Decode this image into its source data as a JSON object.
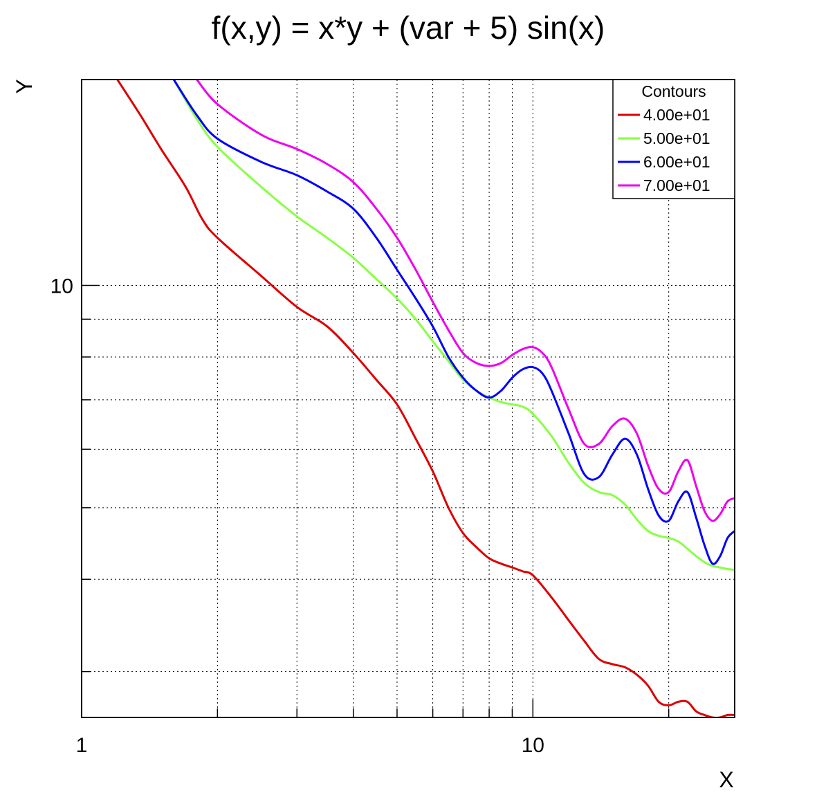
{
  "chart_data": {
    "type": "line",
    "title": "f(x,y) = x*y + (var + 5) sin(x)",
    "xlabel": "X",
    "ylabel": "Y",
    "xscale": "log",
    "yscale": "log",
    "xlim": [
      1,
      28
    ],
    "ylim": [
      2.6,
      19
    ],
    "x_tick_labels": [
      {
        "value": 1,
        "label": "1"
      },
      {
        "value": 10,
        "label": "10"
      }
    ],
    "y_tick_labels": [
      {
        "value": 10,
        "label": "10"
      }
    ],
    "grid": true,
    "legend": {
      "title": "Contours",
      "position": "top-right"
    },
    "series": [
      {
        "name": "4.00e+01",
        "color": "#dd0000",
        "points": [
          [
            1.2,
            19.0
          ],
          [
            1.35,
            17.0
          ],
          [
            1.5,
            15.3
          ],
          [
            1.7,
            13.6
          ],
          [
            1.85,
            12.3
          ],
          [
            2.0,
            11.6
          ],
          [
            2.5,
            10.3
          ],
          [
            3.0,
            9.35
          ],
          [
            3.5,
            8.8
          ],
          [
            4.0,
            8.1
          ],
          [
            4.5,
            7.45
          ],
          [
            5.0,
            6.9
          ],
          [
            5.5,
            6.2
          ],
          [
            6.0,
            5.6
          ],
          [
            6.5,
            5.0
          ],
          [
            7.0,
            4.62
          ],
          [
            7.5,
            4.42
          ],
          [
            8.0,
            4.27
          ],
          [
            8.5,
            4.2
          ],
          [
            9.0,
            4.15
          ],
          [
            9.5,
            4.1
          ],
          [
            10.0,
            4.05
          ],
          [
            11.0,
            3.78
          ],
          [
            12.0,
            3.52
          ],
          [
            13.0,
            3.3
          ],
          [
            14.0,
            3.12
          ],
          [
            15.0,
            3.07
          ],
          [
            16.0,
            3.04
          ],
          [
            17.0,
            2.97
          ],
          [
            18.0,
            2.87
          ],
          [
            19.0,
            2.73
          ],
          [
            20.0,
            2.7
          ],
          [
            21.0,
            2.73
          ],
          [
            22.0,
            2.73
          ],
          [
            23.0,
            2.65
          ],
          [
            24.0,
            2.62
          ],
          [
            25.0,
            2.6
          ],
          [
            26.0,
            2.6
          ],
          [
            27.0,
            2.62
          ],
          [
            28.0,
            2.62
          ]
        ]
      },
      {
        "name": "5.00e+01",
        "color": "#88ff44",
        "points": [
          [
            1.6,
            19.0
          ],
          [
            1.8,
            16.8
          ],
          [
            2.0,
            15.4
          ],
          [
            2.5,
            13.6
          ],
          [
            3.0,
            12.4
          ],
          [
            3.5,
            11.6
          ],
          [
            4.0,
            10.9
          ],
          [
            4.5,
            10.2
          ],
          [
            5.0,
            9.6
          ],
          [
            5.5,
            9.0
          ],
          [
            6.0,
            8.4
          ],
          [
            6.5,
            7.9
          ],
          [
            7.0,
            7.45
          ],
          [
            7.5,
            7.2
          ],
          [
            8.0,
            7.05
          ],
          [
            8.5,
            6.95
          ],
          [
            9.0,
            6.9
          ],
          [
            9.5,
            6.85
          ],
          [
            10.0,
            6.7
          ],
          [
            11.0,
            6.25
          ],
          [
            12.0,
            5.75
          ],
          [
            13.0,
            5.4
          ],
          [
            14.0,
            5.25
          ],
          [
            15.0,
            5.2
          ],
          [
            16.0,
            5.05
          ],
          [
            17.0,
            4.82
          ],
          [
            18.0,
            4.65
          ],
          [
            19.0,
            4.58
          ],
          [
            20.0,
            4.55
          ],
          [
            21.0,
            4.5
          ],
          [
            22.0,
            4.4
          ],
          [
            23.0,
            4.3
          ],
          [
            24.0,
            4.22
          ],
          [
            25.0,
            4.17
          ],
          [
            26.0,
            4.15
          ],
          [
            27.0,
            4.13
          ],
          [
            28.0,
            4.12
          ]
        ]
      },
      {
        "name": "6.00e+01",
        "color": "#0000ff",
        "points": [
          [
            1.6,
            19.0
          ],
          [
            1.8,
            17.0
          ],
          [
            2.0,
            15.8
          ],
          [
            2.5,
            14.7
          ],
          [
            3.0,
            14.1
          ],
          [
            3.5,
            13.4
          ],
          [
            4.0,
            12.7
          ],
          [
            4.5,
            11.6
          ],
          [
            5.0,
            10.5
          ],
          [
            5.5,
            9.6
          ],
          [
            6.0,
            8.8
          ],
          [
            6.5,
            8.0
          ],
          [
            7.0,
            7.5
          ],
          [
            7.5,
            7.2
          ],
          [
            8.0,
            7.05
          ],
          [
            8.5,
            7.2
          ],
          [
            9.0,
            7.5
          ],
          [
            9.5,
            7.7
          ],
          [
            10.0,
            7.75
          ],
          [
            10.5,
            7.6
          ],
          [
            11.0,
            7.2
          ],
          [
            12.0,
            6.3
          ],
          [
            13.0,
            5.55
          ],
          [
            14.0,
            5.5
          ],
          [
            15.0,
            5.9
          ],
          [
            16.0,
            6.2
          ],
          [
            17.0,
            5.9
          ],
          [
            18.0,
            5.3
          ],
          [
            19.0,
            4.88
          ],
          [
            20.0,
            4.8
          ],
          [
            21.0,
            5.1
          ],
          [
            22.0,
            5.25
          ],
          [
            23.0,
            4.85
          ],
          [
            24.0,
            4.45
          ],
          [
            25.0,
            4.2
          ],
          [
            26.0,
            4.3
          ],
          [
            27.0,
            4.55
          ],
          [
            28.0,
            4.65
          ]
        ]
      },
      {
        "name": "7.00e+01",
        "color": "#ee00ee",
        "points": [
          [
            1.8,
            19.0
          ],
          [
            2.0,
            17.6
          ],
          [
            2.5,
            16.0
          ],
          [
            3.0,
            15.3
          ],
          [
            3.5,
            14.6
          ],
          [
            4.0,
            13.8
          ],
          [
            4.5,
            12.7
          ],
          [
            5.0,
            11.6
          ],
          [
            5.5,
            10.5
          ],
          [
            6.0,
            9.5
          ],
          [
            6.5,
            8.7
          ],
          [
            7.0,
            8.1
          ],
          [
            7.5,
            7.85
          ],
          [
            8.0,
            7.78
          ],
          [
            8.5,
            7.85
          ],
          [
            9.0,
            8.05
          ],
          [
            9.5,
            8.2
          ],
          [
            10.0,
            8.25
          ],
          [
            10.5,
            8.1
          ],
          [
            11.0,
            7.75
          ],
          [
            12.0,
            6.8
          ],
          [
            13.0,
            6.1
          ],
          [
            14.0,
            6.1
          ],
          [
            15.0,
            6.45
          ],
          [
            16.0,
            6.6
          ],
          [
            17.0,
            6.3
          ],
          [
            18.0,
            5.7
          ],
          [
            19.0,
            5.3
          ],
          [
            20.0,
            5.25
          ],
          [
            21.0,
            5.6
          ],
          [
            22.0,
            5.8
          ],
          [
            23.0,
            5.35
          ],
          [
            24.0,
            4.95
          ],
          [
            25.0,
            4.8
          ],
          [
            26.0,
            4.9
          ],
          [
            27.0,
            5.1
          ],
          [
            28.0,
            5.15
          ]
        ]
      }
    ]
  }
}
